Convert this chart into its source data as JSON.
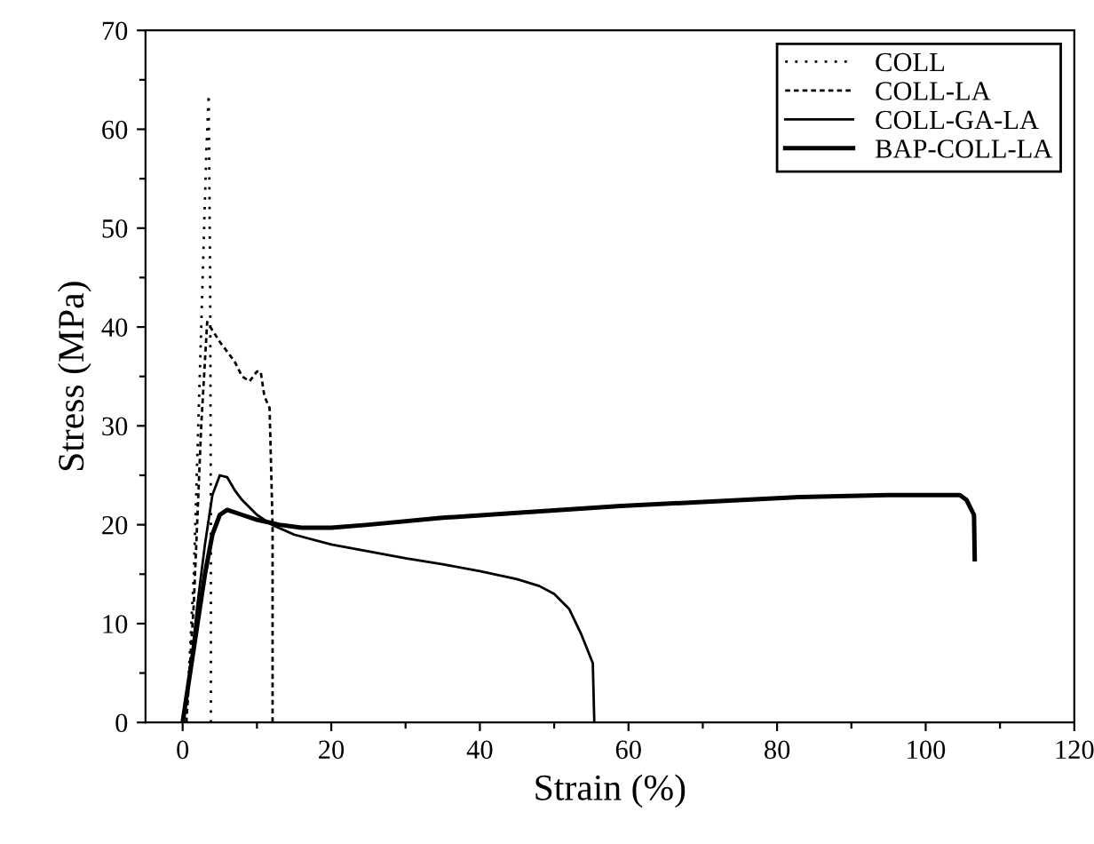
{
  "chart_data": {
    "type": "line",
    "xlabel": "Strain (%)",
    "ylabel": "Stress (MPa)",
    "xlim": [
      -5,
      120
    ],
    "ylim": [
      0,
      70
    ],
    "xticks": [
      0,
      {
        "value": 10,
        "label": null
      },
      20,
      {
        "value": 30,
        "label": null
      },
      40,
      {
        "value": 50,
        "label": null
      },
      60,
      {
        "value": 70,
        "label": null
      },
      80,
      {
        "value": 90,
        "label": null
      },
      100,
      {
        "value": 110,
        "label": null
      },
      120
    ],
    "yticks": [
      0,
      {
        "value": 5,
        "label": null
      },
      10,
      {
        "value": 15,
        "label": null
      },
      20,
      {
        "value": 25,
        "label": null
      },
      30,
      {
        "value": 35,
        "label": null
      },
      40,
      {
        "value": 45,
        "label": null
      },
      50,
      {
        "value": 55,
        "label": null
      },
      60,
      {
        "value": 65,
        "label": null
      },
      70
    ],
    "grid": false,
    "legend": "top right",
    "series": [
      {
        "name": "COLL",
        "color": "#000000",
        "line_style": "dotted",
        "x": [
          0.5,
          1.5,
          2.5,
          3.2,
          3.5,
          3.7,
          3.8,
          3.8
        ],
        "values": [
          0,
          15,
          40,
          58,
          63.5,
          45,
          20,
          0
        ]
      },
      {
        "name": "COLL-LA",
        "color": "#000000",
        "line_style": "dashed",
        "x": [
          0.5,
          1.5,
          2.5,
          3.3,
          5,
          7,
          8,
          9,
          10,
          10.5,
          11,
          11.7,
          12.1,
          12.1
        ],
        "values": [
          0,
          12,
          30,
          40.5,
          38.5,
          36.5,
          35,
          34.5,
          35.5,
          35.5,
          33,
          31.8,
          20,
          0
        ]
      },
      {
        "name": "COLL-GA-LA",
        "color": "#000000",
        "line_style": "solid",
        "x": [
          0,
          1,
          2,
          3,
          4,
          5,
          6,
          7,
          8,
          10,
          12,
          15,
          20,
          25,
          30,
          35,
          40,
          45,
          48,
          50,
          52,
          53.6,
          55.2,
          55.4
        ],
        "values": [
          0,
          5,
          12,
          18,
          23,
          25,
          24.8,
          23.5,
          22.5,
          21,
          20,
          19,
          18,
          17.3,
          16.6,
          16,
          15.3,
          14.5,
          13.8,
          13,
          11.5,
          9,
          6,
          0
        ]
      },
      {
        "name": "BAP-COLL-LA",
        "color": "#000000",
        "line_style": "solid",
        "x": [
          0,
          1,
          2,
          3,
          4,
          5,
          6,
          8,
          10,
          13,
          16,
          20,
          25,
          35,
          45,
          59,
          70,
          83,
          95,
          104.6,
          105.5,
          106.5,
          106.6
        ],
        "values": [
          0,
          5,
          10,
          15,
          19,
          21,
          21.5,
          21,
          20.5,
          20,
          19.7,
          19.7,
          20,
          20.7,
          21.2,
          21.9,
          22.3,
          22.8,
          23,
          23,
          22.5,
          21,
          16.5
        ]
      }
    ]
  }
}
